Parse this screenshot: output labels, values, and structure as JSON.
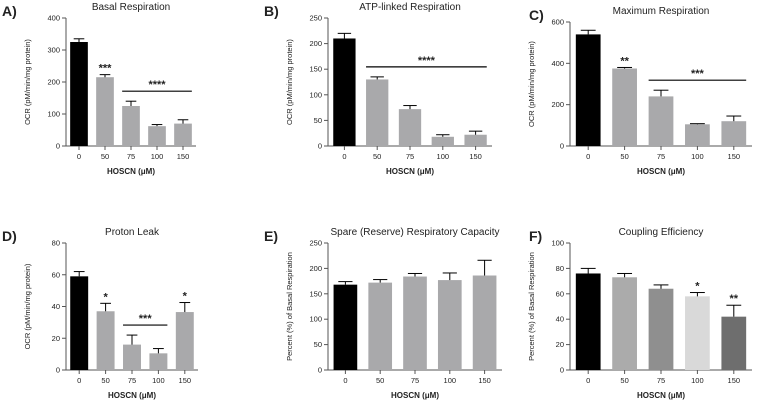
{
  "chart_data": [
    {
      "type": "bar",
      "panel": "A)",
      "title": "Basal Respiration",
      "ylabel": "OCR (pM/min/mg protein)",
      "xlabel": "HOSCN (μM)",
      "categories": [
        "0",
        "50",
        "75",
        "100",
        "150"
      ],
      "values": [
        325,
        215,
        125,
        62,
        70
      ],
      "errors": [
        10,
        8,
        15,
        5,
        12
      ],
      "colors": [
        "#000000",
        "#a9a9ab",
        "#a9a9ab",
        "#a9a9ab",
        "#a9a9ab"
      ],
      "ylim": [
        0,
        400
      ],
      "yticks": [
        0,
        100,
        200,
        300,
        400
      ],
      "annotations": [
        {
          "text": "***",
          "span": [
            1,
            1
          ]
        },
        {
          "text": "****",
          "span": [
            2,
            4
          ]
        }
      ]
    },
    {
      "type": "bar",
      "panel": "B)",
      "title": "ATP-linked Respiration",
      "ylabel": "OCR (pM/min/mg protein)",
      "xlabel": "HOSCN (μM)",
      "categories": [
        "0",
        "50",
        "75",
        "100",
        "150"
      ],
      "values": [
        210,
        130,
        72,
        18,
        22
      ],
      "errors": [
        10,
        5,
        7,
        4,
        7
      ],
      "colors": [
        "#000000",
        "#a9a9ab",
        "#a9a9ab",
        "#a9a9ab",
        "#a9a9ab"
      ],
      "ylim": [
        0,
        250
      ],
      "yticks": [
        0,
        50,
        100,
        150,
        200,
        250
      ],
      "annotations": [
        {
          "text": "****",
          "span": [
            1,
            4
          ]
        }
      ]
    },
    {
      "type": "bar",
      "panel": "C)",
      "title": "Maximum Respiration",
      "ylabel": "OCR (pM/min/mg protein)",
      "xlabel": "HOSCN (μM)",
      "categories": [
        "0",
        "50",
        "75",
        "100",
        "150"
      ],
      "values": [
        540,
        375,
        240,
        105,
        120
      ],
      "errors": [
        20,
        5,
        30,
        3,
        25
      ],
      "colors": [
        "#000000",
        "#a9a9ab",
        "#a9a9ab",
        "#a9a9ab",
        "#a9a9ab"
      ],
      "ylim": [
        0,
        600
      ],
      "yticks": [
        0,
        200,
        400,
        600
      ],
      "annotations": [
        {
          "text": "**",
          "span": [
            1,
            1
          ]
        },
        {
          "text": "***",
          "span": [
            2,
            4
          ]
        }
      ]
    },
    {
      "type": "bar",
      "panel": "D)",
      "title": "Proton Leak",
      "ylabel": "OCR (pM/min/mg protein)",
      "xlabel": "HOSCN (μM)",
      "categories": [
        "0",
        "50",
        "75",
        "100",
        "150"
      ],
      "values": [
        59,
        37,
        16,
        10.5,
        36.5
      ],
      "errors": [
        3,
        5,
        6,
        3,
        6
      ],
      "colors": [
        "#000000",
        "#a9a9ab",
        "#a9a9ab",
        "#a9a9ab",
        "#a9a9ab"
      ],
      "ylim": [
        0,
        80
      ],
      "yticks": [
        0,
        20,
        40,
        60,
        80
      ],
      "annotations": [
        {
          "text": "*",
          "span": [
            1,
            1
          ]
        },
        {
          "text": "***",
          "span": [
            2,
            3
          ]
        },
        {
          "text": "*",
          "span": [
            4,
            4
          ]
        }
      ]
    },
    {
      "type": "bar",
      "panel": "E)",
      "title": "Spare (Reserve) Respiratory Capacity",
      "ylabel": "Percent (%) of Basal Respiration",
      "xlabel": "HOSCN (μM)",
      "categories": [
        "0",
        "50",
        "75",
        "100",
        "150"
      ],
      "values": [
        168,
        172,
        184,
        177,
        186
      ],
      "errors": [
        6,
        6,
        6,
        14,
        30
      ],
      "colors": [
        "#000000",
        "#a9a9ab",
        "#a9a9ab",
        "#a9a9ab",
        "#a9a9ab"
      ],
      "ylim": [
        0,
        250
      ],
      "yticks": [
        0,
        50,
        100,
        150,
        200,
        250
      ],
      "annotations": []
    },
    {
      "type": "bar",
      "panel": "F)",
      "title": "Coupling Efficiency",
      "ylabel": "Percent (%) of Basal Respiration",
      "xlabel": "HOSCN (μM)",
      "categories": [
        "0",
        "50",
        "75",
        "100",
        "150"
      ],
      "values": [
        76,
        73,
        64,
        58,
        42
      ],
      "errors": [
        4,
        3,
        3,
        3,
        9
      ],
      "colors": [
        "#000000",
        "#ababab",
        "#8f8f8f",
        "#d9d9d9",
        "#6e6e6e"
      ],
      "ylim": [
        0,
        100
      ],
      "yticks": [
        0,
        20,
        40,
        60,
        80,
        100
      ],
      "annotations": [
        {
          "text": "*",
          "span": [
            3,
            3
          ]
        },
        {
          "text": "**",
          "span": [
            4,
            4
          ]
        }
      ]
    }
  ]
}
